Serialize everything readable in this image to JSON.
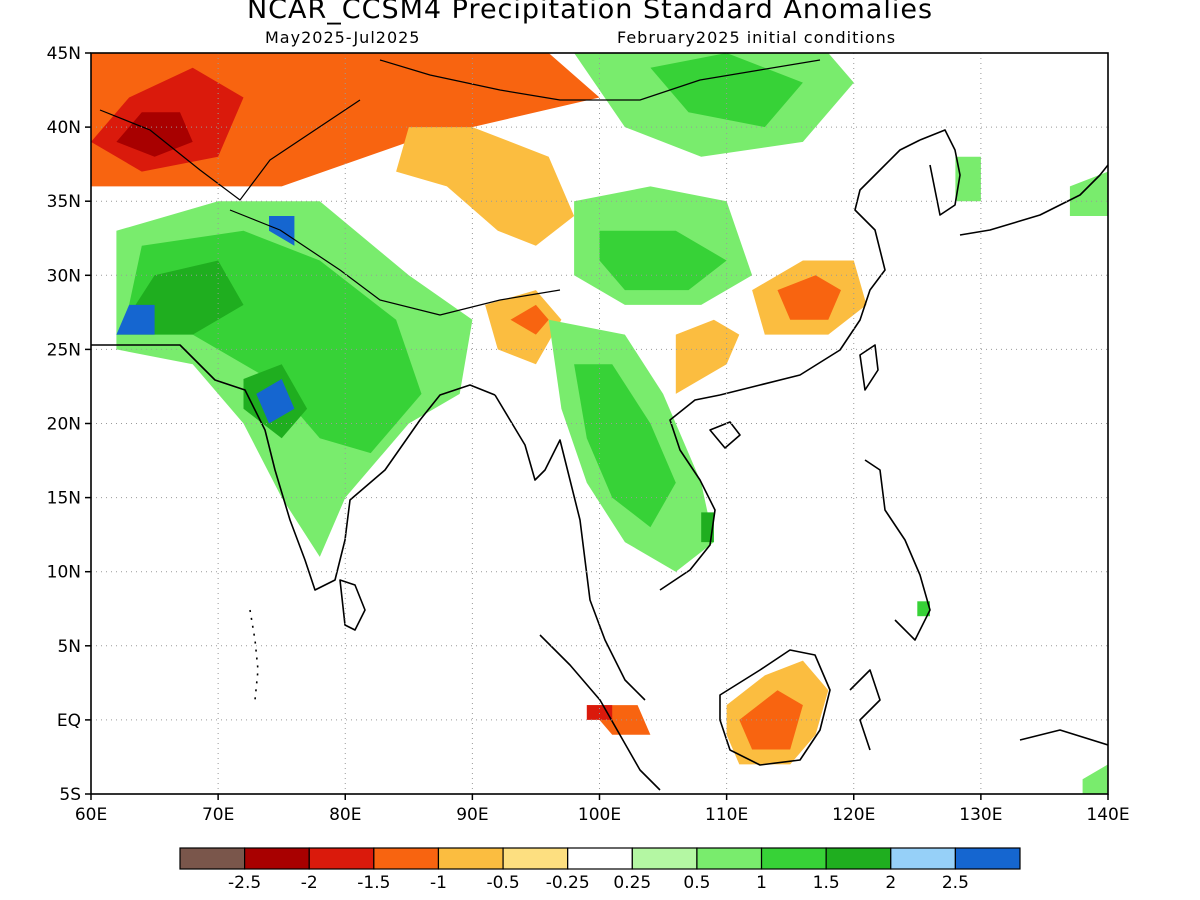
{
  "title": "NCAR_CCSM4 Precipitation Standard Anomalies",
  "subtitle_period": "May2025-Jul2025",
  "subtitle_init": "February2025 initial conditions",
  "map": {
    "lon_range": [
      60,
      140
    ],
    "lat_range": [
      -5,
      45
    ],
    "lat_labels": [
      "5S",
      "EQ",
      "5N",
      "10N",
      "15N",
      "20N",
      "25N",
      "30N",
      "35N",
      "40N",
      "45N"
    ],
    "lon_labels": [
      "60E",
      "70E",
      "80E",
      "90E",
      "100E",
      "110E",
      "120E",
      "130E",
      "140E"
    ],
    "grid": "dotted",
    "regions": [
      {
        "name": "central-asia-dry",
        "level": "-1",
        "points": [
          [
            60,
            36
          ],
          [
            75,
            36
          ],
          [
            85,
            39
          ],
          [
            95,
            41
          ],
          [
            100,
            42
          ],
          [
            96,
            45
          ],
          [
            60,
            45
          ]
        ]
      },
      {
        "name": "kazakh-dry-core",
        "level": "-1.5",
        "points": [
          [
            60,
            39
          ],
          [
            63,
            42
          ],
          [
            68,
            44
          ],
          [
            72,
            42
          ],
          [
            70,
            38
          ],
          [
            64,
            37
          ]
        ]
      },
      {
        "name": "kazakh-very-dry",
        "level": "-2",
        "points": [
          [
            62,
            39
          ],
          [
            64,
            41
          ],
          [
            67,
            41
          ],
          [
            68,
            39
          ],
          [
            65,
            38
          ]
        ]
      },
      {
        "name": "tarim-dry",
        "level": "-0.5",
        "points": [
          [
            84,
            37
          ],
          [
            88,
            36
          ],
          [
            92,
            33
          ],
          [
            95,
            32
          ],
          [
            98,
            34
          ],
          [
            96,
            38
          ],
          [
            90,
            40
          ],
          [
            85,
            40
          ]
        ]
      },
      {
        "name": "mongolia-wet",
        "level": "1",
        "points": [
          [
            98,
            45
          ],
          [
            108,
            45
          ],
          [
            118,
            45
          ],
          [
            120,
            43
          ],
          [
            116,
            39
          ],
          [
            108,
            38
          ],
          [
            102,
            40
          ]
        ]
      },
      {
        "name": "mongolia-wet-core",
        "level": "1.5",
        "points": [
          [
            104,
            44
          ],
          [
            110,
            45
          ],
          [
            116,
            43
          ],
          [
            113,
            40
          ],
          [
            107,
            41
          ]
        ]
      },
      {
        "name": "tibet-wet",
        "level": "1",
        "points": [
          [
            98,
            35
          ],
          [
            104,
            36
          ],
          [
            110,
            35
          ],
          [
            112,
            30
          ],
          [
            108,
            28
          ],
          [
            102,
            28
          ],
          [
            98,
            30
          ]
        ]
      },
      {
        "name": "tibet-wet-core",
        "level": "1.5",
        "points": [
          [
            100,
            33
          ],
          [
            106,
            33
          ],
          [
            110,
            31
          ],
          [
            107,
            29
          ],
          [
            102,
            29
          ],
          [
            100,
            31
          ]
        ]
      },
      {
        "name": "south-china-dry",
        "level": "-0.5",
        "points": [
          [
            112,
            29
          ],
          [
            116,
            31
          ],
          [
            120,
            31
          ],
          [
            121,
            28
          ],
          [
            118,
            26
          ],
          [
            113,
            26
          ]
        ]
      },
      {
        "name": "south-china-dry-core",
        "level": "-1",
        "points": [
          [
            114,
            29
          ],
          [
            117,
            30
          ],
          [
            119,
            29
          ],
          [
            118,
            27
          ],
          [
            115,
            27
          ]
        ]
      },
      {
        "name": "guangxi-dry",
        "level": "-0.5",
        "points": [
          [
            106,
            22
          ],
          [
            110,
            24
          ],
          [
            111,
            26
          ],
          [
            109,
            27
          ],
          [
            106,
            26
          ]
        ]
      },
      {
        "name": "india-wet",
        "level": "1",
        "points": [
          [
            62,
            33
          ],
          [
            70,
            35
          ],
          [
            78,
            35
          ],
          [
            85,
            30
          ],
          [
            90,
            27
          ],
          [
            89,
            22
          ],
          [
            85,
            20
          ],
          [
            80,
            15
          ],
          [
            78,
            11
          ],
          [
            75,
            15
          ],
          [
            72,
            20
          ],
          [
            68,
            24
          ],
          [
            62,
            25
          ]
        ]
      },
      {
        "name": "india-wet-core",
        "level": "1.5",
        "points": [
          [
            64,
            32
          ],
          [
            72,
            33
          ],
          [
            78,
            31
          ],
          [
            84,
            27
          ],
          [
            86,
            22
          ],
          [
            82,
            18
          ],
          [
            78,
            19
          ],
          [
            74,
            23
          ],
          [
            68,
            26
          ],
          [
            63,
            28
          ]
        ]
      },
      {
        "name": "pakistan-very-wet",
        "level": "2",
        "points": [
          [
            62,
            26
          ],
          [
            65,
            30
          ],
          [
            70,
            31
          ],
          [
            72,
            28
          ],
          [
            68,
            26
          ]
        ]
      },
      {
        "name": "pakistan-peak",
        "level": "2.5",
        "points": [
          [
            62,
            26
          ],
          [
            63,
            28
          ],
          [
            65,
            28
          ],
          [
            65,
            26
          ]
        ]
      },
      {
        "name": "kashmir-peak",
        "level": "2.5",
        "points": [
          [
            74,
            34
          ],
          [
            76,
            34
          ],
          [
            76,
            32
          ],
          [
            74,
            33
          ]
        ]
      },
      {
        "name": "gujarat-very-wet",
        "level": "2",
        "points": [
          [
            72,
            23
          ],
          [
            75,
            24
          ],
          [
            77,
            21
          ],
          [
            75,
            19
          ],
          [
            72,
            21
          ]
        ]
      },
      {
        "name": "gujarat-peak",
        "level": "2.5",
        "points": [
          [
            73,
            22
          ],
          [
            75,
            23
          ],
          [
            76,
            21
          ],
          [
            74,
            20
          ]
        ]
      },
      {
        "name": "assam-dry",
        "level": "-0.5",
        "points": [
          [
            91,
            28
          ],
          [
            95,
            29
          ],
          [
            97,
            27
          ],
          [
            95,
            24
          ],
          [
            92,
            25
          ]
        ]
      },
      {
        "name": "assam-dry-core",
        "level": "-1",
        "points": [
          [
            93,
            27
          ],
          [
            95,
            28
          ],
          [
            96,
            27
          ],
          [
            95,
            26
          ]
        ]
      },
      {
        "name": "indochina-wet",
        "level": "1",
        "points": [
          [
            96,
            27
          ],
          [
            102,
            26
          ],
          [
            105,
            22
          ],
          [
            108,
            16
          ],
          [
            109,
            12
          ],
          [
            106,
            10
          ],
          [
            102,
            12
          ],
          [
            99,
            16
          ],
          [
            97,
            21
          ]
        ]
      },
      {
        "name": "indochina-wet-core",
        "level": "1.5",
        "points": [
          [
            98,
            24
          ],
          [
            101,
            24
          ],
          [
            104,
            20
          ],
          [
            106,
            16
          ],
          [
            104,
            13
          ],
          [
            101,
            15
          ],
          [
            99,
            19
          ]
        ]
      },
      {
        "name": "cambodia-wet",
        "level": "2",
        "points": [
          [
            108,
            14
          ],
          [
            109,
            14
          ],
          [
            109,
            12
          ],
          [
            108,
            12
          ]
        ]
      },
      {
        "name": "borneo-dry",
        "level": "-0.5",
        "points": [
          [
            110,
            1
          ],
          [
            113,
            3
          ],
          [
            116,
            4
          ],
          [
            118,
            2
          ],
          [
            117,
            -1
          ],
          [
            115,
            -3
          ],
          [
            111,
            -3
          ],
          [
            110,
            -1
          ]
        ]
      },
      {
        "name": "borneo-dry-core",
        "level": "-1",
        "points": [
          [
            111,
            0
          ],
          [
            114,
            2
          ],
          [
            116,
            1
          ],
          [
            115,
            -2
          ],
          [
            112,
            -2
          ]
        ]
      },
      {
        "name": "sumatra-dry",
        "level": "-1",
        "points": [
          [
            99,
            1
          ],
          [
            103,
            1
          ],
          [
            104,
            -1
          ],
          [
            101,
            -1
          ]
        ]
      },
      {
        "name": "sumatra-dry-core",
        "level": "-1.5",
        "points": [
          [
            99,
            1
          ],
          [
            101,
            1
          ],
          [
            101,
            0
          ],
          [
            99,
            0
          ]
        ]
      },
      {
        "name": "korea-wet",
        "level": "1",
        "points": [
          [
            128,
            38
          ],
          [
            130,
            38
          ],
          [
            130,
            35
          ],
          [
            128,
            35
          ]
        ]
      },
      {
        "name": "japan-wet",
        "level": "1",
        "points": [
          [
            137,
            36
          ],
          [
            140,
            37
          ],
          [
            140,
            34
          ],
          [
            137,
            34
          ]
        ]
      },
      {
        "name": "philippines-wet",
        "level": "1.5",
        "points": [
          [
            125,
            8
          ],
          [
            126,
            8
          ],
          [
            126,
            7
          ],
          [
            125,
            7
          ]
        ]
      },
      {
        "name": "new-guinea-wet",
        "level": "1",
        "points": [
          [
            138,
            -4
          ],
          [
            140,
            -3
          ],
          [
            140,
            -5
          ],
          [
            138,
            -5
          ]
        ]
      }
    ]
  },
  "legend": {
    "colors": [
      "#7a564b",
      "#a80000",
      "#da1a0c",
      "#f86410",
      "#fbbd40",
      "#fddf80",
      "#ffffff",
      "#b4f7a3",
      "#79ec6d",
      "#37d237",
      "#1fae1f",
      "#96d0f8",
      "#1566d0"
    ],
    "levels": [
      "-2.5",
      "-2",
      "-1.5",
      "-1",
      "-0.5",
      "-0.25",
      "0.25",
      "0.5",
      "1",
      "1.5",
      "2",
      "2.5"
    ]
  }
}
